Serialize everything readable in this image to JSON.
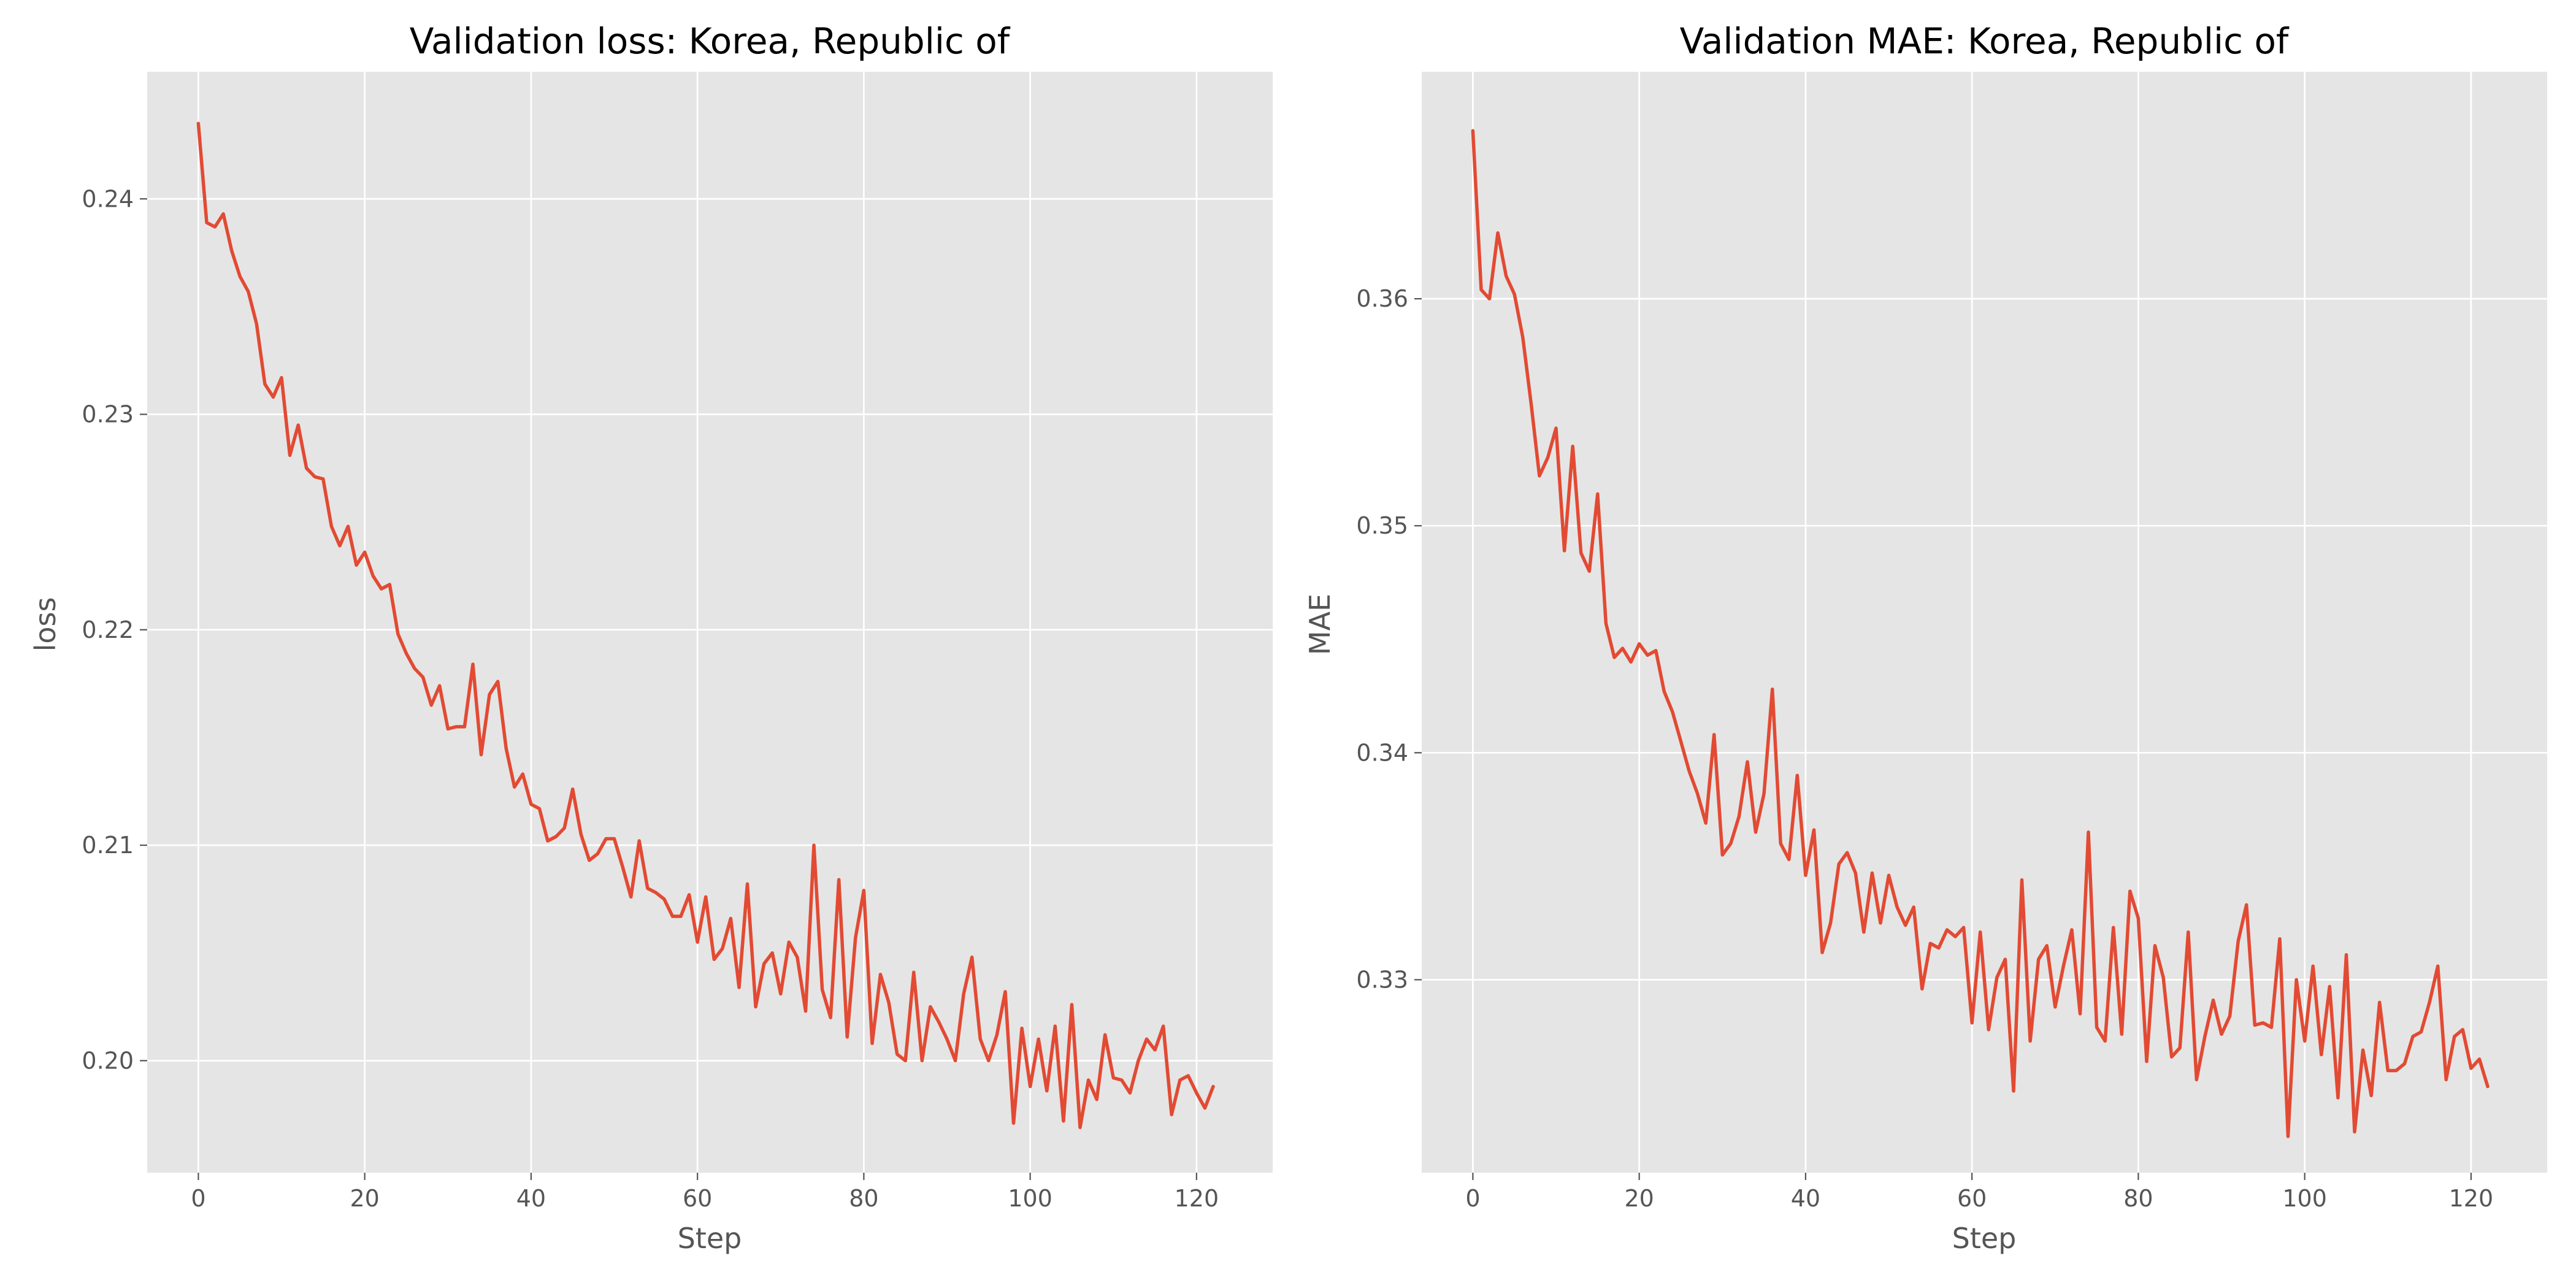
{
  "chart_data": [
    {
      "type": "line",
      "title": "Validation loss: Korea, Republic of",
      "xlabel": "Step",
      "ylabel": "loss",
      "xlim": [
        -6.15,
        129.15
      ],
      "ylim": [
        0.1948,
        0.2459
      ],
      "xticks": [
        0,
        20,
        40,
        60,
        80,
        100,
        120
      ],
      "xtick_labels": [
        "0",
        "20",
        "40",
        "60",
        "80",
        "100",
        "120"
      ],
      "yticks": [
        0.2,
        0.21,
        0.22,
        0.23,
        0.24
      ],
      "ytick_labels": [
        "0.20",
        "0.21",
        "0.22",
        "0.23",
        "0.24"
      ],
      "grid": true,
      "series_color": "#e24a33",
      "series": [
        {
          "x": [
            0,
            1,
            2,
            3,
            4,
            5,
            6,
            7,
            8,
            9,
            10,
            11,
            12,
            13,
            14,
            15,
            16,
            17,
            18,
            19,
            20,
            21,
            22,
            23,
            24,
            25,
            26,
            27,
            28,
            29,
            30,
            31,
            32,
            33,
            34,
            35,
            36,
            37,
            38,
            39,
            40,
            41,
            42,
            43,
            44,
            45,
            46,
            47,
            48,
            49,
            50,
            51,
            52,
            53,
            54,
            55,
            56,
            57,
            58,
            59,
            60,
            61,
            62,
            63,
            64,
            65,
            66,
            67,
            68,
            69,
            70,
            71,
            72,
            73,
            74,
            75,
            76,
            77,
            78,
            79,
            80,
            81,
            82,
            83,
            84,
            85,
            86,
            87,
            88,
            89,
            90,
            91,
            92,
            93,
            94,
            95,
            96,
            97,
            98,
            99,
            100,
            101,
            102,
            103,
            104,
            105,
            106,
            107,
            108,
            109,
            110,
            111,
            112,
            113,
            114,
            115,
            116,
            117,
            118,
            119,
            120,
            121,
            122
          ],
          "values": [
            0.2435,
            0.2389,
            0.2387,
            0.2393,
            0.2376,
            0.2364,
            0.2357,
            0.2342,
            0.2314,
            0.2308,
            0.2317,
            0.2281,
            0.2295,
            0.2275,
            0.2271,
            0.227,
            0.2248,
            0.2239,
            0.2248,
            0.223,
            0.2236,
            0.2225,
            0.2219,
            0.2221,
            0.2198,
            0.2189,
            0.2182,
            0.2178,
            0.2165,
            0.2174,
            0.2154,
            0.2155,
            0.2155,
            0.2184,
            0.2142,
            0.217,
            0.2176,
            0.2145,
            0.2127,
            0.2133,
            0.2119,
            0.2117,
            0.2102,
            0.2104,
            0.2108,
            0.2126,
            0.2105,
            0.2093,
            0.2096,
            0.2103,
            0.2103,
            0.209,
            0.2076,
            0.2102,
            0.208,
            0.2078,
            0.2075,
            0.2067,
            0.2067,
            0.2077,
            0.2055,
            0.2076,
            0.2047,
            0.2052,
            0.2066,
            0.2034,
            0.2082,
            0.2025,
            0.2045,
            0.205,
            0.2031,
            0.2055,
            0.2048,
            0.2023,
            0.21,
            0.2033,
            0.202,
            0.2084,
            0.2011,
            0.2057,
            0.2079,
            0.2008,
            0.204,
            0.2027,
            0.2003,
            0.2,
            0.2041,
            0.2,
            0.2025,
            0.2018,
            0.201,
            0.2,
            0.2031,
            0.2048,
            0.201,
            0.2,
            0.2012,
            0.2032,
            0.1971,
            0.2015,
            0.1988,
            0.201,
            0.1986,
            0.2016,
            0.1972,
            0.2026,
            0.1969,
            0.1991,
            0.1982,
            0.2012,
            0.1992,
            0.1991,
            0.1985,
            0.2,
            0.201,
            0.2005,
            0.2016,
            0.1975,
            0.1991,
            0.1993,
            0.1985,
            0.1978,
            0.1988
          ]
        }
      ]
    },
    {
      "type": "line",
      "title": "Validation MAE: Korea, Republic of",
      "xlabel": "Step",
      "ylabel": "MAE",
      "xlim": [
        -6.15,
        129.15
      ],
      "ylim": [
        0.3215,
        0.37
      ],
      "xticks": [
        0,
        20,
        40,
        60,
        80,
        100,
        120
      ],
      "xtick_labels": [
        "0",
        "20",
        "40",
        "60",
        "80",
        "100",
        "120"
      ],
      "yticks": [
        0.33,
        0.34,
        0.35,
        0.36
      ],
      "ytick_labels": [
        "0.33",
        "0.34",
        "0.35",
        "0.36"
      ],
      "grid": true,
      "series_color": "#e24a33",
      "series": [
        {
          "x": [
            0,
            1,
            2,
            3,
            4,
            5,
            6,
            7,
            8,
            9,
            10,
            11,
            12,
            13,
            14,
            15,
            16,
            17,
            18,
            19,
            20,
            21,
            22,
            23,
            24,
            25,
            26,
            27,
            28,
            29,
            30,
            31,
            32,
            33,
            34,
            35,
            36,
            37,
            38,
            39,
            40,
            41,
            42,
            43,
            44,
            45,
            46,
            47,
            48,
            49,
            50,
            51,
            52,
            53,
            54,
            55,
            56,
            57,
            58,
            59,
            60,
            61,
            62,
            63,
            64,
            65,
            66,
            67,
            68,
            69,
            70,
            71,
            72,
            73,
            74,
            75,
            76,
            77,
            78,
            79,
            80,
            81,
            82,
            83,
            84,
            85,
            86,
            87,
            88,
            89,
            90,
            91,
            92,
            93,
            94,
            95,
            96,
            97,
            98,
            99,
            100,
            101,
            102,
            103,
            104,
            105,
            106,
            107,
            108,
            109,
            110,
            111,
            112,
            113,
            114,
            115,
            116,
            117,
            118,
            119,
            120,
            121,
            122
          ],
          "values": [
            0.3674,
            0.3604,
            0.36,
            0.3629,
            0.361,
            0.3602,
            0.3583,
            0.3554,
            0.3522,
            0.353,
            0.3543,
            0.3489,
            0.3535,
            0.3488,
            0.348,
            0.3514,
            0.3457,
            0.3442,
            0.3446,
            0.344,
            0.3448,
            0.3443,
            0.3445,
            0.3427,
            0.3418,
            0.3405,
            0.3392,
            0.3382,
            0.3369,
            0.3408,
            0.3355,
            0.336,
            0.3372,
            0.3396,
            0.3365,
            0.3382,
            0.3428,
            0.336,
            0.3353,
            0.339,
            0.3346,
            0.3366,
            0.3312,
            0.3325,
            0.3351,
            0.3356,
            0.3347,
            0.3321,
            0.3347,
            0.3325,
            0.3346,
            0.3332,
            0.3324,
            0.3332,
            0.3296,
            0.3316,
            0.3314,
            0.3322,
            0.3319,
            0.3323,
            0.3281,
            0.3321,
            0.3278,
            0.3301,
            0.3309,
            0.3251,
            0.3344,
            0.3273,
            0.3309,
            0.3315,
            0.3288,
            0.3306,
            0.3322,
            0.3285,
            0.3365,
            0.3279,
            0.3273,
            0.3323,
            0.3276,
            0.3339,
            0.3327,
            0.3264,
            0.3315,
            0.3301,
            0.3266,
            0.327,
            0.3321,
            0.3256,
            0.3275,
            0.3291,
            0.3276,
            0.3284,
            0.3317,
            0.3333,
            0.328,
            0.3281,
            0.3279,
            0.3318,
            0.3231,
            0.33,
            0.3273,
            0.3306,
            0.3267,
            0.3297,
            0.3248,
            0.3311,
            0.3233,
            0.3269,
            0.3249,
            0.329,
            0.326,
            0.326,
            0.3263,
            0.3275,
            0.3277,
            0.329,
            0.3306,
            0.3256,
            0.3275,
            0.3278,
            0.3261,
            0.3265,
            0.3253
          ]
        }
      ]
    }
  ]
}
